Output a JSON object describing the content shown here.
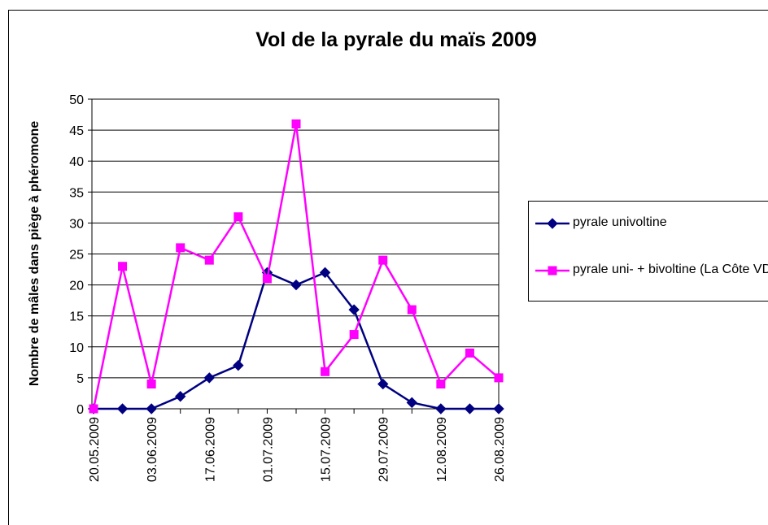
{
  "chart_data": {
    "type": "line",
    "title": "Vol de la pyrale du maïs 2009",
    "y_label": "Nombre de mâles dans piège à phéromone",
    "categories": [
      "20.05.2009",
      null,
      "03.06.2009",
      null,
      "17.06.2009",
      null,
      "01.07.2009",
      null,
      "15.07.2009",
      null,
      "29.07.2009",
      null,
      "12.08.2009",
      null,
      "26.08.2009"
    ],
    "series": [
      {
        "name": "pyrale univoltine",
        "color": "#000080",
        "marker": "diamond",
        "values": [
          0,
          0,
          0,
          2,
          5,
          7,
          22,
          20,
          22,
          16,
          4,
          1,
          0,
          0,
          0
        ]
      },
      {
        "name": "pyrale uni- + bivoltine (La Côte VD)",
        "color": "#ff00ff",
        "marker": "square",
        "values": [
          0,
          23,
          4,
          26,
          24,
          31,
          21,
          46,
          6,
          12,
          24,
          16,
          4,
          9,
          5
        ]
      }
    ],
    "ylim": [
      0,
      50
    ],
    "yticks": [
      0,
      5,
      10,
      15,
      20,
      25,
      30,
      35,
      40,
      45,
      50
    ],
    "grid": true
  }
}
